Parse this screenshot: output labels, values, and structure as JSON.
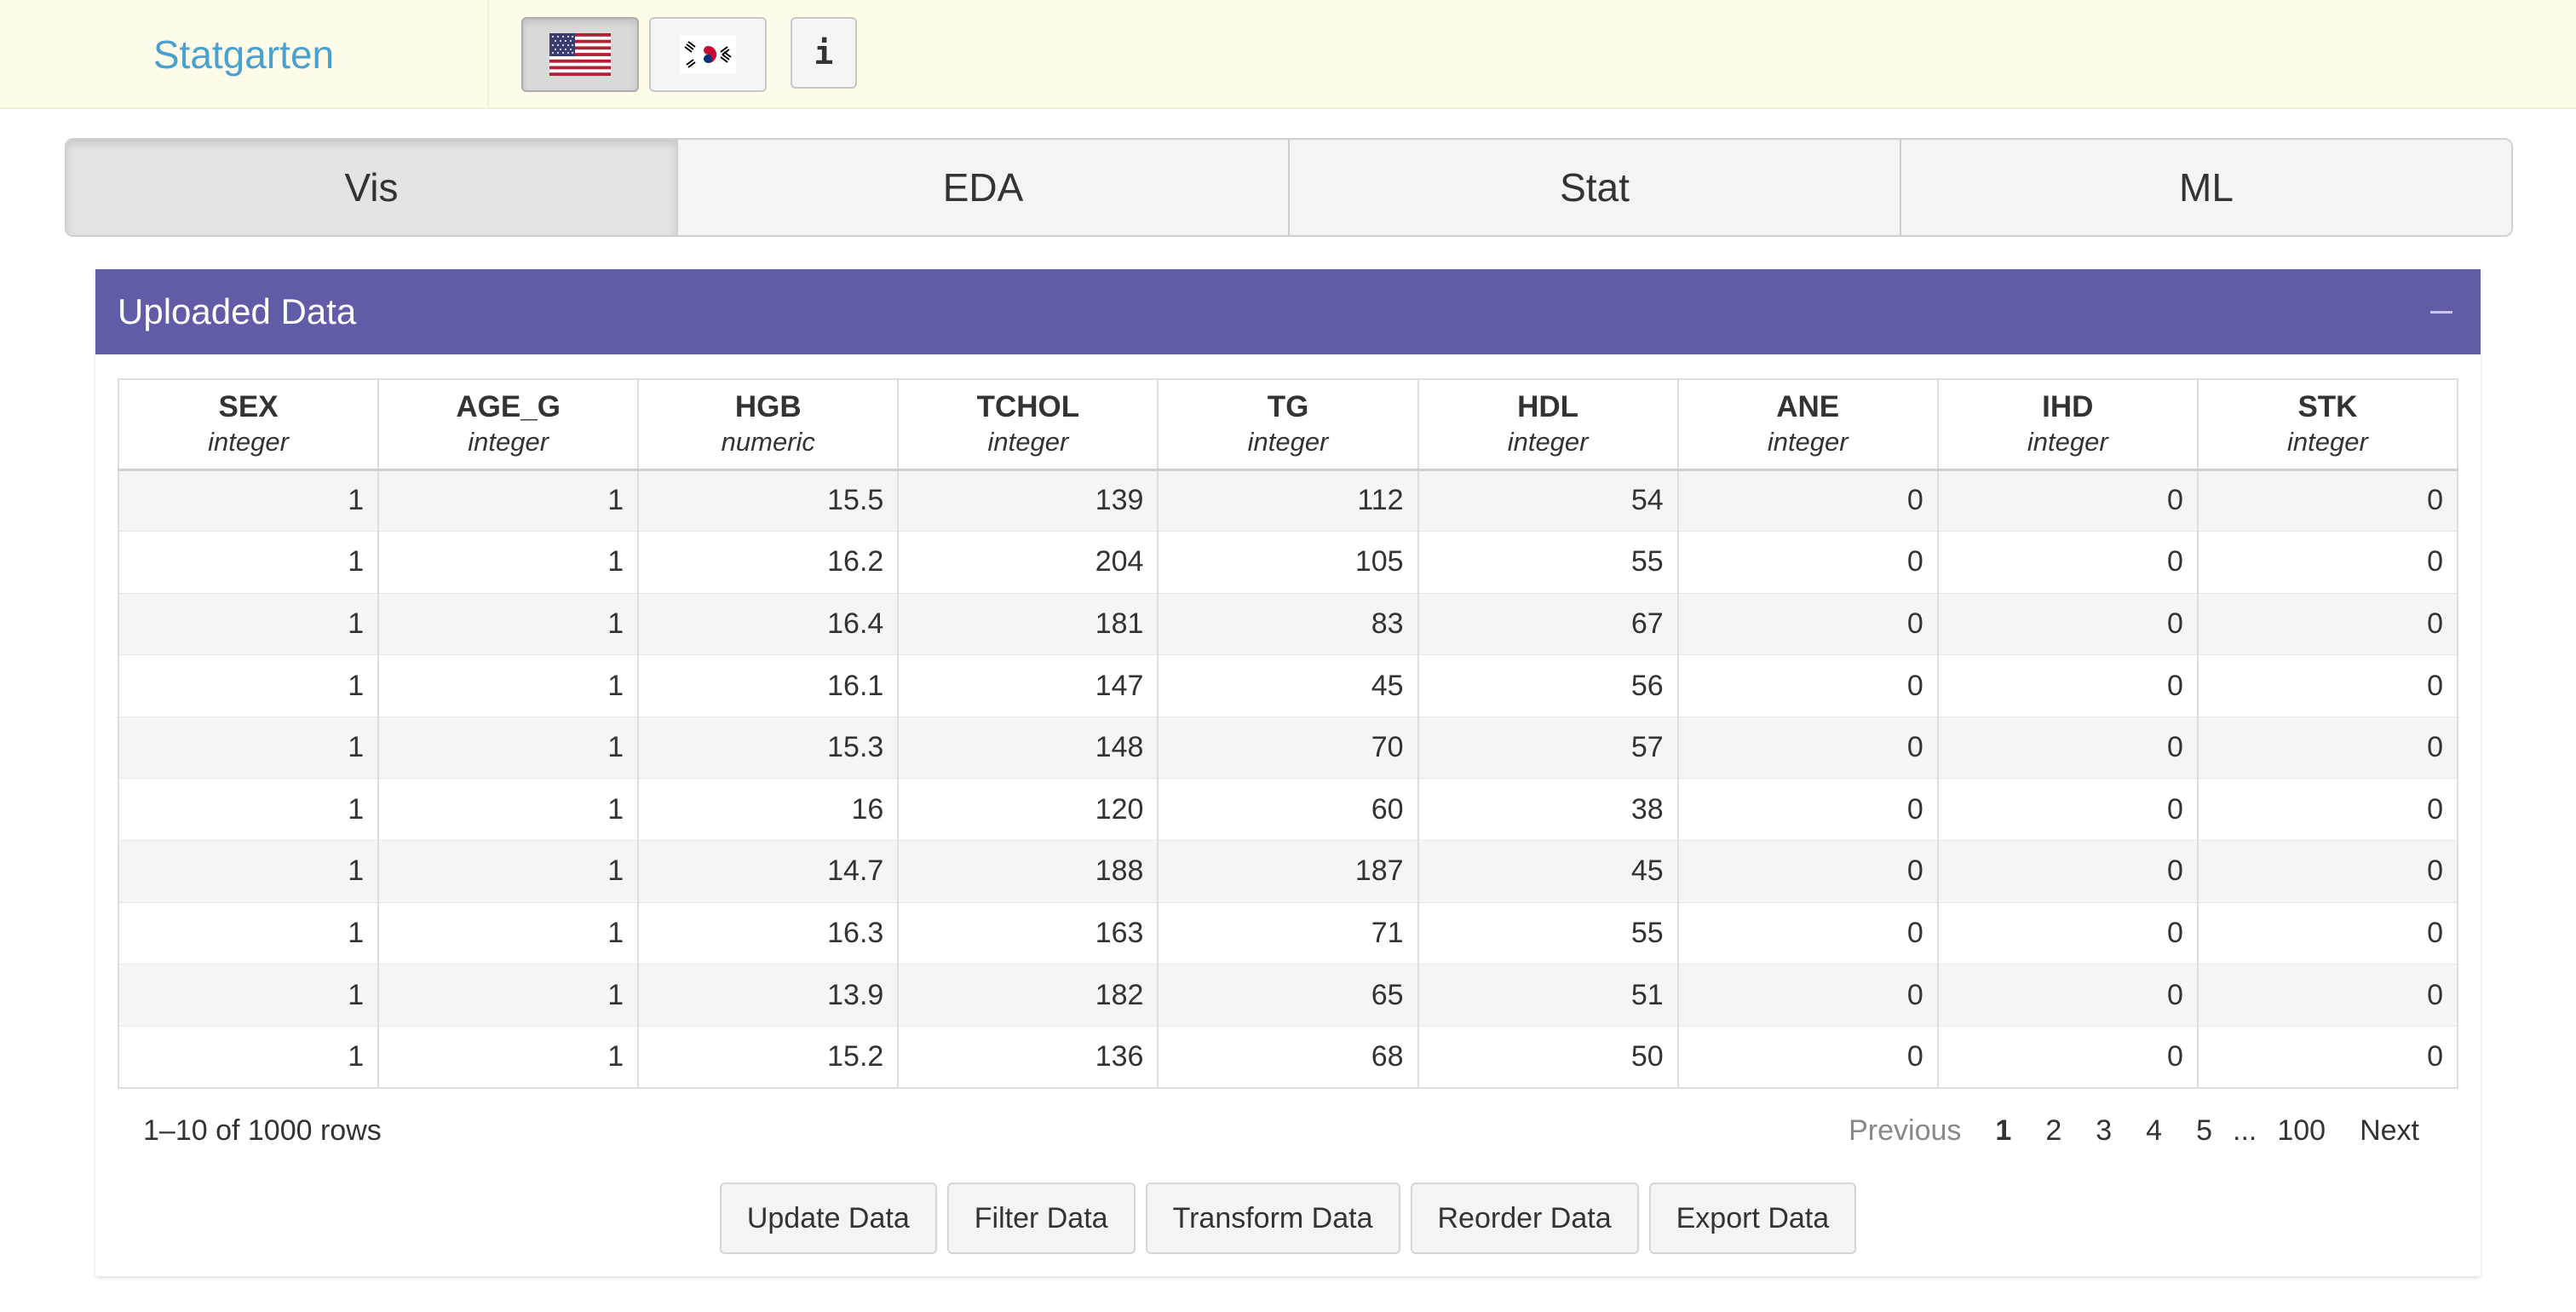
{
  "app": {
    "brand": "Statgarten"
  },
  "language": {
    "options": [
      {
        "label": "English",
        "icon": "us-flag-icon",
        "active": true
      },
      {
        "label": "Korean",
        "icon": "korea-flag-icon",
        "active": false
      }
    ],
    "info_label": "i"
  },
  "tabs": [
    {
      "label": "Vis",
      "active": true
    },
    {
      "label": "EDA",
      "active": false
    },
    {
      "label": "Stat",
      "active": false
    },
    {
      "label": "ML",
      "active": false
    }
  ],
  "panel": {
    "title": "Uploaded Data",
    "header_color": "#605ca8",
    "columns": [
      {
        "name": "SEX",
        "type": "integer"
      },
      {
        "name": "AGE_G",
        "type": "integer"
      },
      {
        "name": "HGB",
        "type": "numeric"
      },
      {
        "name": "TCHOL",
        "type": "integer"
      },
      {
        "name": "TG",
        "type": "integer"
      },
      {
        "name": "HDL",
        "type": "integer"
      },
      {
        "name": "ANE",
        "type": "integer"
      },
      {
        "name": "IHD",
        "type": "integer"
      },
      {
        "name": "STK",
        "type": "integer"
      }
    ],
    "rows": [
      [
        "1",
        "1",
        "15.5",
        "139",
        "112",
        "54",
        "0",
        "0",
        "0"
      ],
      [
        "1",
        "1",
        "16.2",
        "204",
        "105",
        "55",
        "0",
        "0",
        "0"
      ],
      [
        "1",
        "1",
        "16.4",
        "181",
        "83",
        "67",
        "0",
        "0",
        "0"
      ],
      [
        "1",
        "1",
        "16.1",
        "147",
        "45",
        "56",
        "0",
        "0",
        "0"
      ],
      [
        "1",
        "1",
        "15.3",
        "148",
        "70",
        "57",
        "0",
        "0",
        "0"
      ],
      [
        "1",
        "1",
        "16",
        "120",
        "60",
        "38",
        "0",
        "0",
        "0"
      ],
      [
        "1",
        "1",
        "14.7",
        "188",
        "187",
        "45",
        "0",
        "0",
        "0"
      ],
      [
        "1",
        "1",
        "16.3",
        "163",
        "71",
        "55",
        "0",
        "0",
        "0"
      ],
      [
        "1",
        "1",
        "13.9",
        "182",
        "65",
        "51",
        "0",
        "0",
        "0"
      ],
      [
        "1",
        "1",
        "15.2",
        "136",
        "68",
        "50",
        "0",
        "0",
        "0"
      ]
    ],
    "row_info": "1–10 of 1000 rows",
    "pagination": {
      "previous": "Previous",
      "pages": [
        "1",
        "2",
        "3",
        "4",
        "5"
      ],
      "ellipsis": "...",
      "last": "100",
      "next": "Next",
      "current": "1"
    },
    "actions": [
      "Update Data",
      "Filter Data",
      "Transform Data",
      "Reorder Data",
      "Export Data"
    ]
  }
}
